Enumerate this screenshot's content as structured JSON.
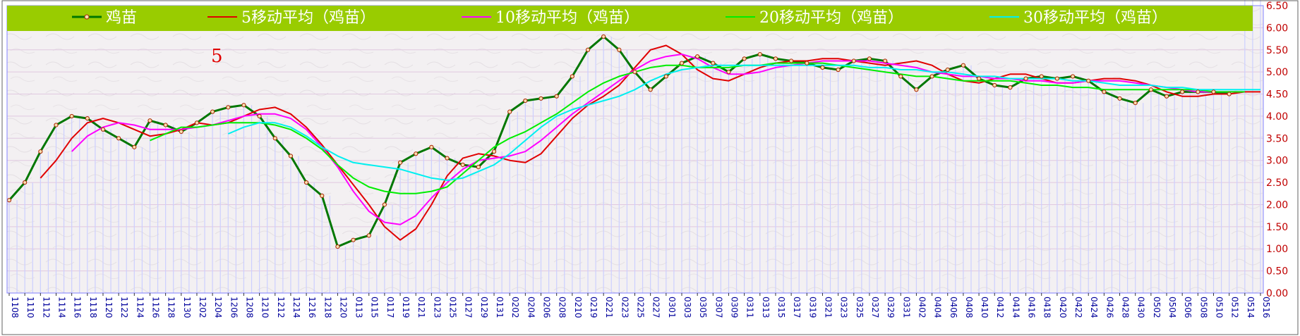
{
  "chart_data": {
    "type": "line",
    "title": "",
    "xlabel": "",
    "ylabel": "",
    "annotation": "5",
    "ylim": [
      0,
      6.5
    ],
    "yticks": [
      "0.00",
      "0.50",
      "1.00",
      "1.50",
      "2.00",
      "2.50",
      "3.00",
      "3.50",
      "4.00",
      "4.50",
      "5.00",
      "5.50",
      "6.00",
      "6.50"
    ],
    "x_labels": [
      "1108",
      "1110",
      "1112",
      "1114",
      "1116",
      "1118",
      "1120",
      "1122",
      "1124",
      "1126",
      "1128",
      "1130",
      "1202",
      "1204",
      "1206",
      "1208",
      "1210",
      "1212",
      "1214",
      "1216",
      "1218",
      "1220",
      "0113",
      "0115",
      "0117",
      "0119",
      "0121",
      "0123",
      "0125",
      "0127",
      "0129",
      "0131",
      "0202",
      "0204",
      "0206",
      "0208",
      "0210",
      "0219",
      "0221",
      "0223",
      "0225",
      "0227",
      "0301",
      "0303",
      "0305",
      "0307",
      "0309",
      "0311",
      "0313",
      "0315",
      "0317",
      "0319",
      "0321",
      "0323",
      "0325",
      "0327",
      "0329",
      "0331",
      "0402",
      "0404",
      "0406",
      "0408",
      "0410",
      "0412",
      "0414",
      "0416",
      "0418",
      "0420",
      "0422",
      "0424",
      "0426",
      "0428",
      "0430",
      "0502",
      "0504",
      "0506",
      "0508",
      "0510",
      "0512",
      "0514",
      "0516"
    ],
    "price": [
      2.1,
      2.5,
      3.2,
      3.8,
      4.0,
      3.95,
      3.7,
      3.5,
      3.3,
      3.9,
      3.8,
      3.65,
      3.85,
      4.1,
      4.2,
      4.25,
      4.0,
      3.5,
      3.1,
      2.5,
      2.2,
      1.05,
      1.2,
      1.3,
      2.0,
      2.95,
      3.15,
      3.3,
      3.05,
      2.9,
      2.85,
      3.2,
      4.1,
      4.35,
      4.4,
      4.45,
      4.9,
      5.5,
      5.8,
      5.5,
      5.0,
      4.6,
      4.9,
      5.2,
      5.35,
      5.2,
      5.0,
      5.3,
      5.4,
      5.3,
      5.25,
      5.2,
      5.1,
      5.05,
      5.25,
      5.3,
      5.25,
      4.9,
      4.6,
      4.9,
      5.05,
      5.15,
      4.85,
      4.7,
      4.65,
      4.85,
      4.9,
      4.85,
      4.9,
      4.8,
      4.55,
      4.4,
      4.3,
      4.6,
      4.45,
      4.55,
      4.55,
      4.55,
      4.5
    ],
    "series": [
      {
        "name": "鸡苗",
        "color": "#007700",
        "start": 0,
        "values": [
          2.1,
          2.5,
          3.2,
          3.8,
          4.0,
          3.95,
          3.7,
          3.5,
          3.3,
          3.9,
          3.8,
          3.65,
          3.85,
          4.1,
          4.2,
          4.25,
          4.0,
          3.5,
          3.1,
          2.5,
          2.2,
          1.05,
          1.2,
          1.3,
          2.0,
          2.95,
          3.15,
          3.3,
          3.05,
          2.9,
          2.85,
          3.2,
          4.1,
          4.35,
          4.4,
          4.45,
          4.9,
          5.5,
          5.8,
          5.5,
          5.0,
          4.6,
          4.9,
          5.2,
          5.35,
          5.2,
          5.0,
          5.3,
          5.4,
          5.3,
          5.25,
          5.2,
          5.1,
          5.05,
          5.25,
          5.3,
          5.25,
          4.9,
          4.6,
          4.9,
          5.05,
          5.15,
          4.85,
          4.7,
          4.65,
          4.85,
          4.9,
          4.85,
          4.9,
          4.8,
          4.55,
          4.4,
          4.3,
          4.6,
          4.45,
          4.55,
          4.55,
          4.55,
          4.5
        ]
      },
      {
        "name": "5移动平均（鸡苗）",
        "color": "#e00000",
        "start": 2,
        "values": [
          2.6,
          3.0,
          3.5,
          3.85,
          3.95,
          3.85,
          3.7,
          3.55,
          3.6,
          3.7,
          3.85,
          3.8,
          3.85,
          4.0,
          4.15,
          4.2,
          4.05,
          3.75,
          3.35,
          2.9,
          2.45,
          2.0,
          1.5,
          1.2,
          1.45,
          2.0,
          2.65,
          3.05,
          3.15,
          3.1,
          3.0,
          2.95,
          3.15,
          3.55,
          3.95,
          4.25,
          4.45,
          4.7,
          5.1,
          5.5,
          5.6,
          5.4,
          5.05,
          4.85,
          4.8,
          4.95,
          5.1,
          5.2,
          5.25,
          5.25,
          5.3,
          5.3,
          5.25,
          5.2,
          5.15,
          5.2,
          5.25,
          5.15,
          4.95,
          4.8,
          4.75,
          4.85,
          4.95,
          4.95,
          4.85,
          4.75,
          4.75,
          4.8,
          4.85,
          4.85,
          4.8,
          4.7,
          4.55,
          4.45,
          4.45,
          4.5,
          4.5,
          4.55,
          4.55
        ]
      },
      {
        "name": "10移动平均（鸡苗）",
        "color": "#ff00ff",
        "start": 4,
        "values": [
          3.2,
          3.55,
          3.75,
          3.85,
          3.8,
          3.7,
          3.7,
          3.7,
          3.75,
          3.8,
          3.9,
          4.0,
          4.05,
          4.05,
          3.95,
          3.7,
          3.3,
          2.85,
          2.3,
          1.85,
          1.6,
          1.55,
          1.75,
          2.15,
          2.5,
          2.8,
          3.0,
          3.05,
          3.1,
          3.2,
          3.45,
          3.75,
          4.05,
          4.3,
          4.55,
          4.8,
          5.05,
          5.25,
          5.35,
          5.4,
          5.3,
          5.1,
          4.95,
          4.95,
          5.0,
          5.1,
          5.15,
          5.2,
          5.25,
          5.25,
          5.25,
          5.25,
          5.2,
          5.15,
          5.1,
          5.0,
          4.95,
          4.9,
          4.9,
          4.85,
          4.85,
          4.8,
          4.8,
          4.75,
          4.75,
          4.8,
          4.8,
          4.8,
          4.75,
          4.7,
          4.65,
          4.6,
          4.55,
          4.55,
          4.55,
          4.55
        ]
      },
      {
        "name": "20移动平均（鸡苗）",
        "color": "#00ee00",
        "start": 9,
        "values": [
          3.45,
          3.6,
          3.75,
          3.75,
          3.8,
          3.85,
          3.85,
          3.85,
          3.8,
          3.7,
          3.5,
          3.25,
          2.9,
          2.6,
          2.4,
          2.3,
          2.25,
          2.25,
          2.3,
          2.4,
          2.7,
          3.0,
          3.3,
          3.5,
          3.65,
          3.85,
          4.05,
          4.3,
          4.55,
          4.75,
          4.9,
          5.0,
          5.1,
          5.15,
          5.15,
          5.1,
          5.1,
          5.1,
          5.15,
          5.15,
          5.2,
          5.2,
          5.2,
          5.2,
          5.15,
          5.1,
          5.05,
          5.0,
          4.95,
          4.9,
          4.9,
          4.85,
          4.8,
          4.8,
          4.8,
          4.8,
          4.75,
          4.7,
          4.7,
          4.65,
          4.65,
          4.6,
          4.6,
          4.6,
          4.6,
          4.6,
          4.6,
          4.6,
          4.55,
          4.55,
          4.55
        ]
      },
      {
        "name": "30移动平均（鸡苗）",
        "color": "#00f0f0",
        "start": 14,
        "values": [
          3.6,
          3.75,
          3.85,
          3.85,
          3.75,
          3.55,
          3.3,
          3.1,
          2.95,
          2.9,
          2.85,
          2.8,
          2.7,
          2.6,
          2.55,
          2.6,
          2.75,
          2.9,
          3.15,
          3.45,
          3.75,
          4.0,
          4.15,
          4.25,
          4.35,
          4.45,
          4.6,
          4.8,
          4.95,
          5.05,
          5.1,
          5.15,
          5.15,
          5.15,
          5.15,
          5.15,
          5.15,
          5.15,
          5.15,
          5.15,
          5.15,
          5.1,
          5.1,
          5.05,
          5.05,
          5.0,
          5.0,
          4.95,
          4.9,
          4.9,
          4.85,
          4.85,
          4.85,
          4.85,
          4.8,
          4.8,
          4.75,
          4.7,
          4.7,
          4.7,
          4.65,
          4.65,
          4.6,
          4.6,
          4.6,
          4.6,
          4.6
        ]
      }
    ],
    "colors": {
      "legend_bg": "#99cc00",
      "plot_bg": "#f2eff1",
      "bar": "#cccfff",
      "grid": "#e0c8e0",
      "axis_frame": "#8080ff",
      "marker_fill": "#f5e0b0",
      "marker_stroke": "#aa2200"
    }
  }
}
